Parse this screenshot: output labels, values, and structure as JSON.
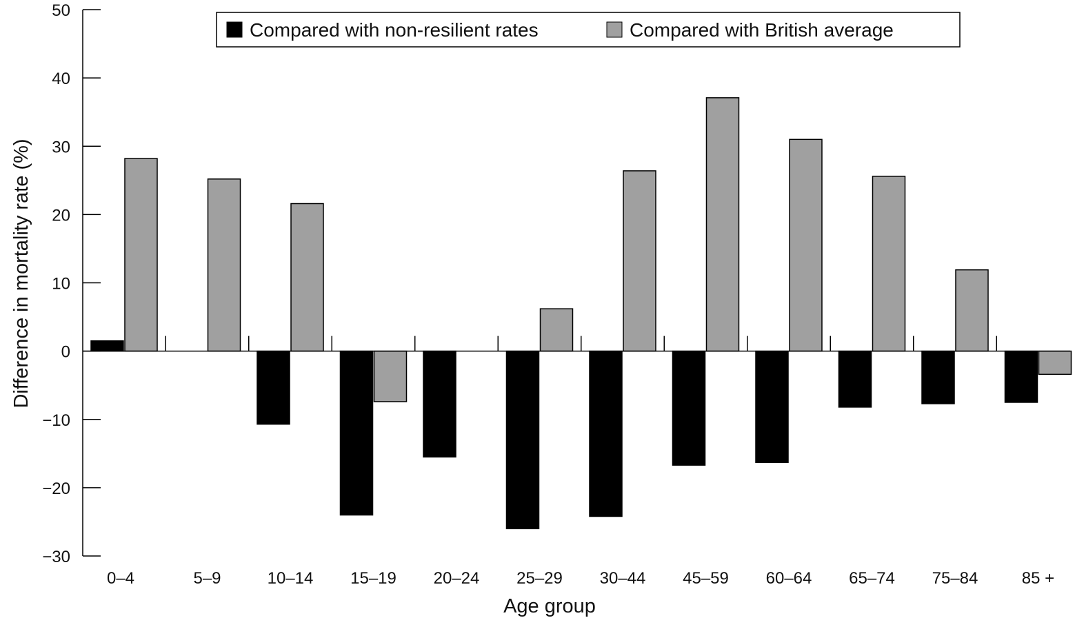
{
  "chart_data": {
    "type": "bar",
    "title": "",
    "xlabel": "Age group",
    "ylabel": "Difference in mortality rate (%)",
    "ylim": [
      -30,
      50
    ],
    "yticks": [
      50,
      40,
      30,
      20,
      10,
      0,
      -10,
      -20,
      -30
    ],
    "ytick_labels": [
      "50",
      "40",
      "30",
      "20",
      "10",
      "0",
      "−10",
      "−20",
      "−30"
    ],
    "categories": [
      "0–4",
      "5–9",
      "10–14",
      "15–19",
      "20–24",
      "25–29",
      "30–44",
      "45–59",
      "60–64",
      "65–74",
      "75–84",
      "85 +"
    ],
    "series": [
      {
        "name": "Compared with non-resilient rates",
        "color": "#000000",
        "values": [
          1.5,
          null,
          -10.7,
          -24.0,
          -15.5,
          -26.0,
          -24.2,
          -16.7,
          -16.3,
          -8.2,
          -7.7,
          -7.5
        ]
      },
      {
        "name": "Compared with British average",
        "color": "#a0a0a0",
        "values": [
          28.2,
          25.2,
          21.6,
          -7.4,
          null,
          6.2,
          26.4,
          37.1,
          31.0,
          25.6,
          11.9,
          -3.4
        ]
      }
    ],
    "legend": "top-center",
    "grid": false
  }
}
